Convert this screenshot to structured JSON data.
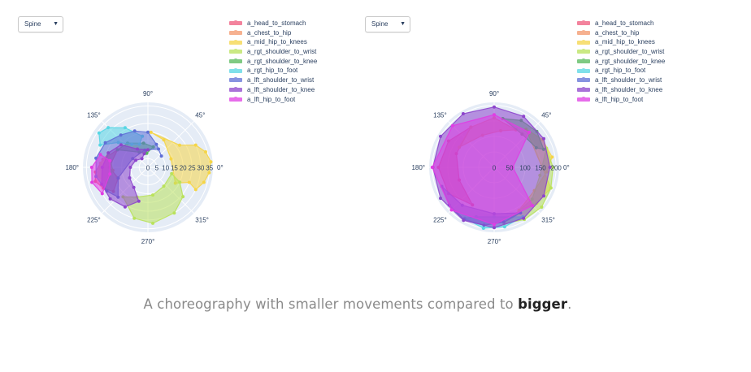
{
  "caption": {
    "text": "A choreography with smaller movements compared to ",
    "emphasis": "bigger",
    "end": "."
  },
  "colors": {
    "a_head_to_stomach": "#ef5a7d",
    "a_chest_to_hip": "#f4976c",
    "a_mid_hip_to_knees": "#f5d547",
    "a_rgt_shoulder_to_wrist": "#b9e25c",
    "a_rgt_shoulder_to_knee": "#55b95a",
    "a_rgt_hip_to_foot": "#58d6e4",
    "a_lft_shoulder_to_wrist": "#5f6fd6",
    "a_lft_shoulder_to_knee": "#8d45cc",
    "a_lft_hip_to_foot": "#e03de3"
  },
  "chart_data": [
    {
      "type": "polar-area",
      "dropdown": {
        "selected": "Spine"
      },
      "angular_tick_labels": [
        "0°",
        "45°",
        "90°",
        "135°",
        "180°",
        "225°",
        "270°",
        "315°"
      ],
      "radial_tick_labels": [
        "0",
        "5",
        "10",
        "15",
        "20",
        "25",
        "30",
        "35"
      ],
      "radial_range": [
        0,
        37
      ],
      "legend": [
        "a_head_to_stomach",
        "a_chest_to_hip",
        "a_mid_hip_to_knees",
        "a_rgt_shoulder_to_wrist",
        "a_rgt_shoulder_to_knee",
        "a_rgt_hip_to_foot",
        "a_lft_shoulder_to_wrist",
        "a_lft_shoulder_to_knee",
        "a_lft_hip_to_foot"
      ],
      "series": [
        {
          "name": "a_head_to_stomach",
          "theta": [
            150,
            170,
            185,
            195,
            205,
            215,
            200,
            180
          ],
          "r": [
            20,
            26,
            30,
            31,
            28,
            24,
            18,
            22
          ]
        },
        {
          "name": "a_chest_to_hip",
          "theta": [
            160,
            175,
            190,
            200,
            185
          ],
          "r": [
            24,
            27,
            29,
            25,
            20
          ]
        },
        {
          "name": "a_mid_hip_to_knees",
          "theta": [
            35,
            25,
            15,
            5,
            355,
            345,
            335,
            340,
            330,
            20,
            60,
            85
          ],
          "r": [
            22,
            30,
            34,
            36,
            35,
            33,
            30,
            25,
            18,
            14,
            18,
            20
          ]
        },
        {
          "name": "a_rgt_shoulder_to_wrist",
          "theta": [
            255,
            275,
            300,
            320,
            335,
            345,
            310,
            280,
            250,
            230
          ],
          "r": [
            30,
            32,
            30,
            26,
            20,
            14,
            14,
            16,
            18,
            22
          ]
        },
        {
          "name": "a_rgt_shoulder_to_knee",
          "theta": [
            100,
            130,
            150,
            120,
            95,
            75
          ],
          "r": [
            14,
            18,
            20,
            10,
            8,
            12
          ]
        },
        {
          "name": "a_rgt_hip_to_foot",
          "theta": [
            100,
            120,
            135,
            145,
            155,
            140,
            125,
            110
          ],
          "r": [
            18,
            26,
            32,
            34,
            30,
            22,
            16,
            14
          ]
        },
        {
          "name": "a_lft_shoulder_to_wrist",
          "theta": [
            70,
            90,
            110,
            130,
            150,
            170,
            190,
            210,
            225,
            200,
            150,
            100,
            60,
            40
          ],
          "r": [
            14,
            20,
            22,
            24,
            28,
            30,
            30,
            27,
            24,
            18,
            10,
            10,
            12,
            10
          ]
        },
        {
          "name": "a_lft_shoulder_to_knee",
          "theta": [
            120,
            140,
            160,
            180,
            200,
            220,
            240,
            255,
            235,
            210,
            180,
            150,
            125,
            105,
            90
          ],
          "r": [
            12,
            20,
            24,
            26,
            28,
            28,
            26,
            20,
            14,
            12,
            10,
            8,
            6,
            8,
            10
          ]
        },
        {
          "name": "a_lft_hip_to_foot",
          "theta": [
            165,
            180,
            195,
            210,
            190,
            170
          ],
          "r": [
            28,
            32,
            33,
            30,
            22,
            22
          ]
        }
      ]
    },
    {
      "type": "polar-area",
      "dropdown": {
        "selected": "Spine"
      },
      "angular_tick_labels": [
        "0°",
        "45°",
        "90°",
        "135°",
        "180°",
        "225°",
        "270°",
        "315°"
      ],
      "radial_tick_labels": [
        "0",
        "50",
        "100",
        "150",
        "200"
      ],
      "radial_range": [
        0,
        210
      ],
      "legend": [
        "a_head_to_stomach",
        "a_chest_to_hip",
        "a_mid_hip_to_knees",
        "a_rgt_shoulder_to_wrist",
        "a_rgt_shoulder_to_knee",
        "a_rgt_hip_to_foot",
        "a_lft_shoulder_to_wrist",
        "a_lft_shoulder_to_knee",
        "a_lft_hip_to_foot"
      ],
      "series": [
        {
          "name": "a_head_to_stomach",
          "theta": [
            120,
            150,
            180,
            210,
            240,
            200,
            160
          ],
          "r": [
            150,
            170,
            180,
            170,
            140,
            120,
            130
          ]
        },
        {
          "name": "a_chest_to_hip",
          "theta": [
            60,
            90,
            120,
            150,
            110,
            80
          ],
          "r": [
            140,
            160,
            150,
            130,
            110,
            120
          ]
        },
        {
          "name": "a_mid_hip_to_knees",
          "theta": [
            10,
            30,
            50,
            340,
            320,
            300,
            330,
            355
          ],
          "r": [
            190,
            180,
            160,
            195,
            180,
            160,
            150,
            170
          ]
        },
        {
          "name": "a_rgt_shoulder_to_wrist",
          "theta": [
            280,
            300,
            320,
            340,
            0,
            20,
            350,
            320,
            290
          ],
          "r": [
            185,
            195,
            200,
            195,
            190,
            180,
            150,
            160,
            170
          ]
        },
        {
          "name": "a_rgt_shoulder_to_knee",
          "theta": [
            20,
            40,
            60,
            80,
            50,
            25
          ],
          "r": [
            170,
            180,
            175,
            160,
            140,
            150
          ]
        },
        {
          "name": "a_rgt_hip_to_foot",
          "theta": [
            240,
            260,
            280,
            300,
            270,
            250
          ],
          "r": [
            190,
            200,
            195,
            185,
            160,
            170
          ]
        },
        {
          "name": "a_lft_shoulder_to_wrist",
          "theta": [
            200,
            220,
            240,
            260,
            280,
            300,
            270,
            230
          ],
          "r": [
            180,
            190,
            195,
            190,
            180,
            170,
            150,
            160
          ]
        },
        {
          "name": "a_lft_shoulder_to_knee",
          "theta": [
            0,
            30,
            60,
            90,
            120,
            150,
            180,
            210,
            240,
            270,
            300,
            330
          ],
          "r": [
            180,
            185,
            190,
            195,
            200,
            200,
            198,
            200,
            198,
            195,
            190,
            185
          ]
        },
        {
          "name": "a_lft_hip_to_foot",
          "theta": [
            90,
            135,
            180,
            225,
            270,
            315,
            0,
            45
          ],
          "r": [
            170,
            190,
            200,
            195,
            185,
            175,
            60,
            160
          ]
        }
      ]
    }
  ]
}
